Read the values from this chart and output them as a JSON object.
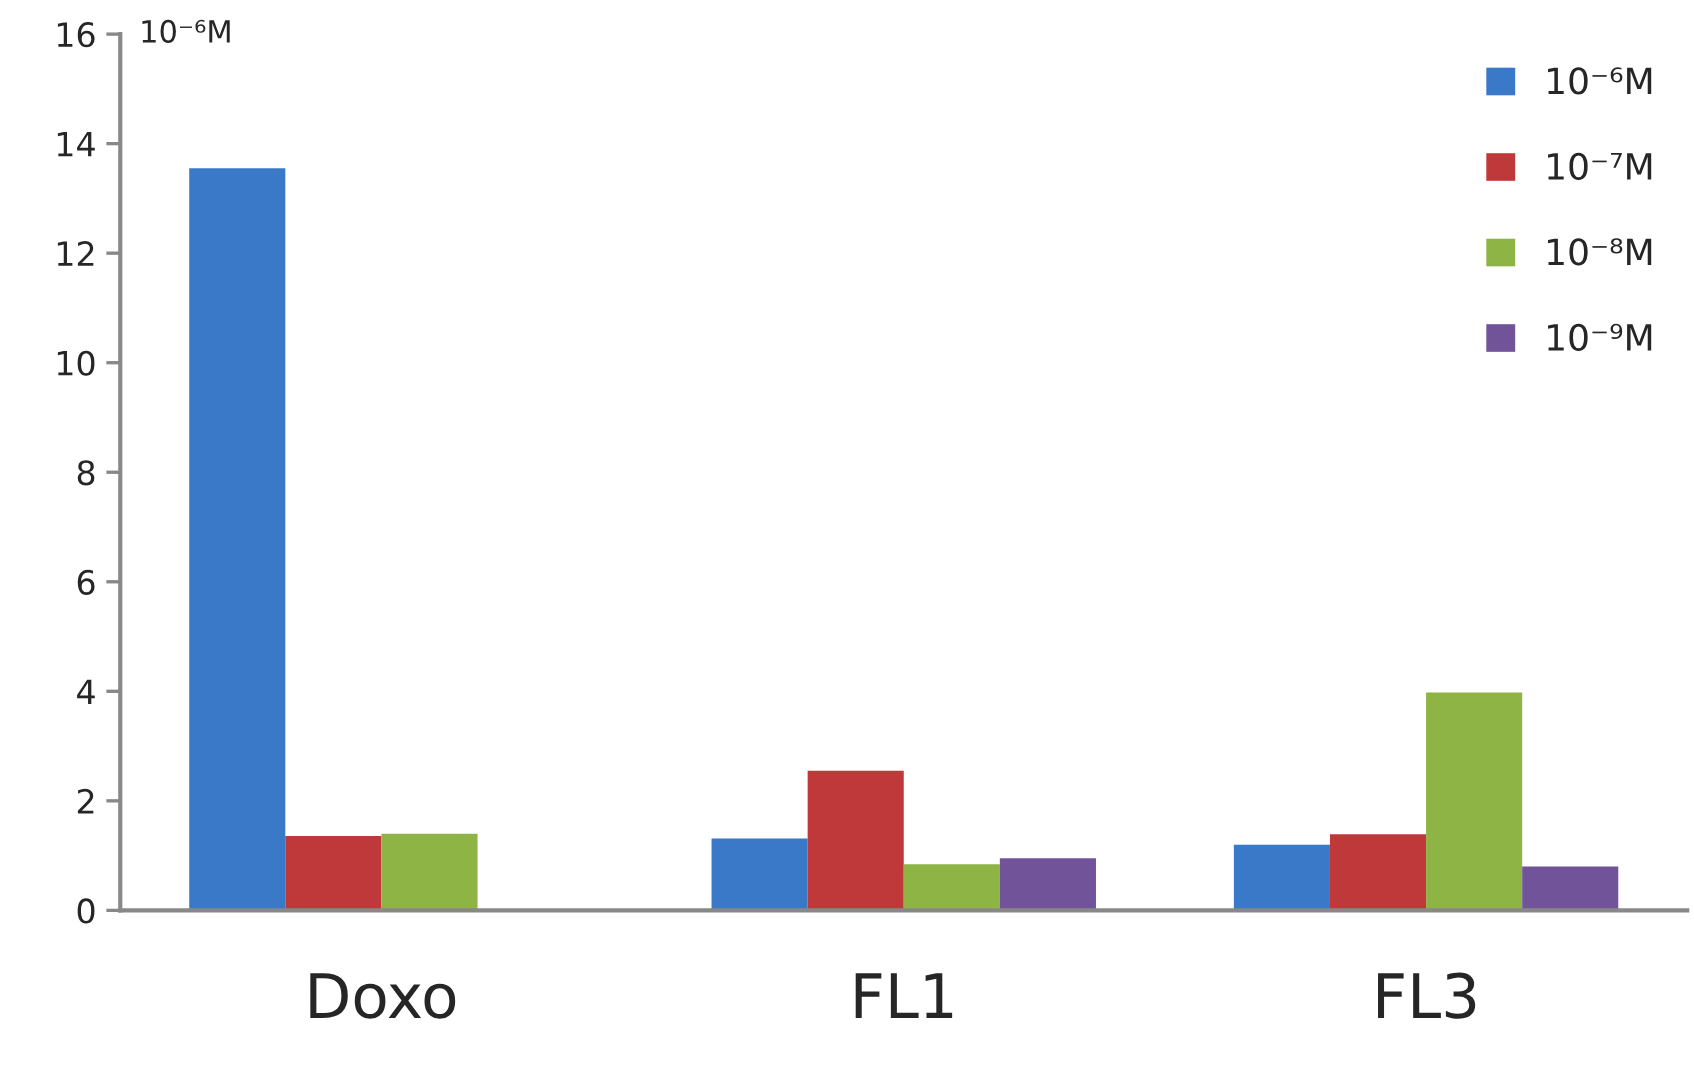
{
  "chart_data": {
    "type": "bar",
    "categories": [
      "Doxo",
      "FL1",
      "FL3"
    ],
    "series": [
      {
        "name": "10⁻⁶M",
        "color": "#3a78c8",
        "values": [
          13.55,
          1.31,
          1.2
        ]
      },
      {
        "name": "10⁻⁷M",
        "color": "#c0393a",
        "values": [
          1.36,
          2.55,
          1.39
        ]
      },
      {
        "name": "10⁻⁸M",
        "color": "#8db444",
        "values": [
          1.4,
          0.84,
          3.98
        ]
      },
      {
        "name": "10⁻⁹M",
        "color": "#71539a",
        "values": [
          null,
          0.95,
          0.8
        ]
      }
    ],
    "ylim": [
      0,
      16
    ],
    "yticks": [
      0,
      2,
      4,
      6,
      8,
      10,
      12,
      14,
      16
    ],
    "grid": false,
    "legend": "top right",
    "annotations": [
      "10⁻⁶M"
    ]
  }
}
